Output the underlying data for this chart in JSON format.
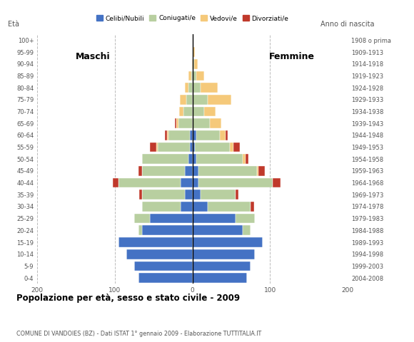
{
  "age_groups": [
    "0-4",
    "5-9",
    "10-14",
    "15-19",
    "20-24",
    "25-29",
    "30-34",
    "35-39",
    "40-44",
    "45-49",
    "50-54",
    "55-59",
    "60-64",
    "65-69",
    "70-74",
    "75-79",
    "80-84",
    "85-89",
    "90-94",
    "95-99",
    "100+"
  ],
  "birth_years": [
    "2004-2008",
    "1999-2003",
    "1994-1998",
    "1989-1993",
    "1984-1988",
    "1979-1983",
    "1974-1978",
    "1969-1973",
    "1964-1968",
    "1959-1963",
    "1954-1958",
    "1949-1953",
    "1944-1948",
    "1939-1943",
    "1934-1938",
    "1929-1933",
    "1924-1928",
    "1919-1923",
    "1914-1918",
    "1909-1913",
    "1908 o prima"
  ],
  "males": {
    "celibi": [
      70,
      75,
      85,
      95,
      65,
      55,
      15,
      10,
      15,
      10,
      5,
      3,
      3,
      0,
      0,
      0,
      0,
      0,
      0,
      0,
      0
    ],
    "coniugati": [
      0,
      0,
      0,
      0,
      5,
      20,
      50,
      55,
      80,
      55,
      60,
      42,
      28,
      18,
      12,
      8,
      5,
      2,
      0,
      0,
      0
    ],
    "vedovi": [
      0,
      0,
      0,
      0,
      0,
      0,
      0,
      0,
      0,
      0,
      0,
      2,
      2,
      3,
      5,
      8,
      5,
      3,
      1,
      0,
      0
    ],
    "divorziati": [
      0,
      0,
      0,
      0,
      0,
      0,
      0,
      4,
      8,
      5,
      0,
      8,
      3,
      2,
      0,
      0,
      0,
      0,
      0,
      0,
      0
    ]
  },
  "females": {
    "nubili": [
      70,
      75,
      80,
      90,
      65,
      55,
      20,
      10,
      8,
      8,
      5,
      3,
      5,
      0,
      0,
      0,
      0,
      0,
      0,
      0,
      0
    ],
    "coniugate": [
      0,
      0,
      0,
      0,
      10,
      25,
      55,
      45,
      95,
      75,
      60,
      45,
      30,
      22,
      15,
      20,
      10,
      5,
      2,
      0,
      0
    ],
    "vedove": [
      0,
      0,
      0,
      0,
      0,
      0,
      0,
      0,
      0,
      2,
      3,
      5,
      8,
      15,
      15,
      30,
      22,
      10,
      5,
      3,
      0
    ],
    "divorziate": [
      0,
      0,
      0,
      0,
      0,
      0,
      4,
      4,
      10,
      8,
      4,
      8,
      2,
      0,
      0,
      0,
      0,
      0,
      0,
      0,
      0
    ]
  },
  "colors": {
    "celibi": "#4472c4",
    "coniugati": "#b8cfa0",
    "vedovi": "#f5c97a",
    "divorziati": "#c0392b"
  },
  "xlim": [
    -200,
    200
  ],
  "xticks": [
    -200,
    -100,
    0,
    100,
    200
  ],
  "xticklabels": [
    "200",
    "100",
    "0",
    "100",
    "200"
  ],
  "title": "Popolazione per età, sesso e stato civile - 2009",
  "subtitle": "COMUNE DI VANDOIES (BZ) - Dati ISTAT 1° gennaio 2009 - Elaborazione TUTTITALIA.IT",
  "ylabel_left": "Età",
  "ylabel_right": "Anno di nascita",
  "label_maschi": "Maschi",
  "label_femmine": "Femmine",
  "legend_labels": [
    "Celibi/Nubili",
    "Coniugati/e",
    "Vedovi/e",
    "Divorziati/e"
  ],
  "bg_color": "#ffffff",
  "grid_color": "#bbbbbb"
}
